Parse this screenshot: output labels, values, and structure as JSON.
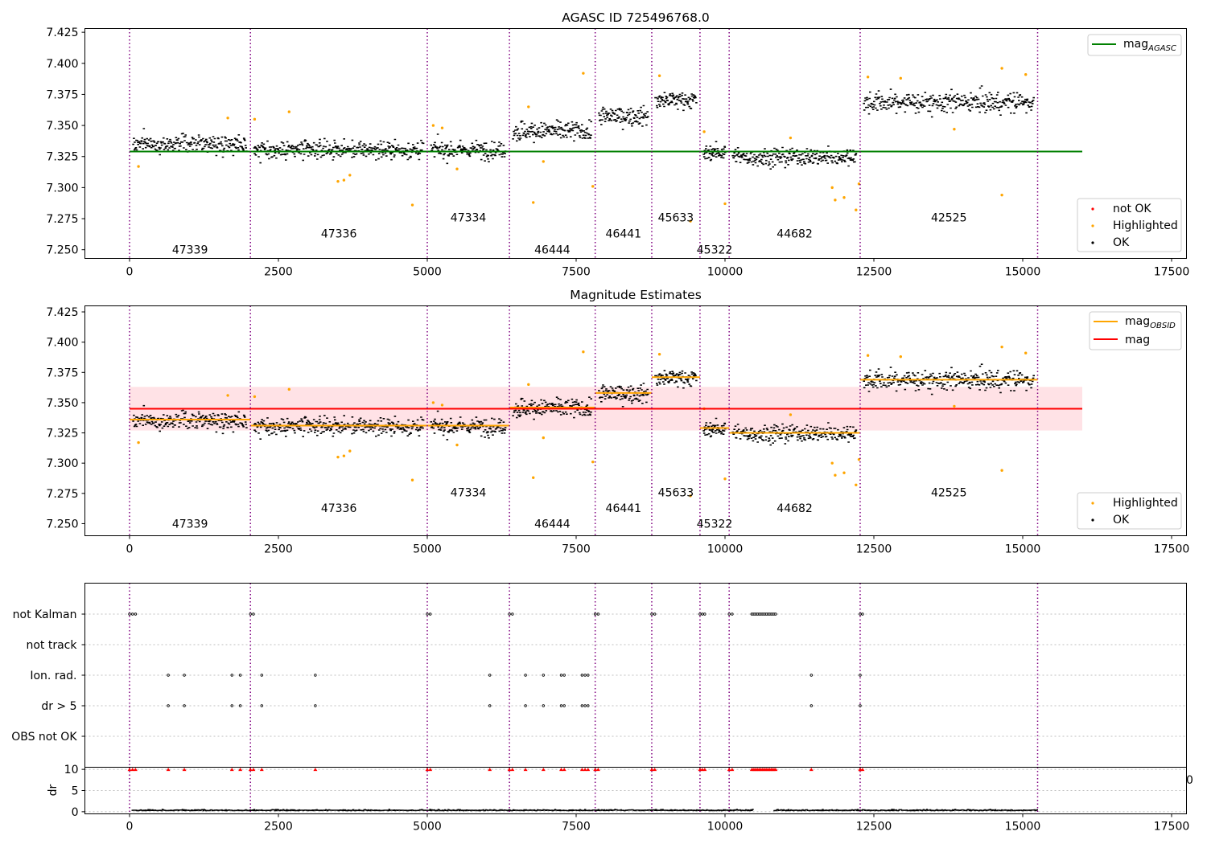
{
  "chart_data": [
    {
      "type": "scatter",
      "title": "AGASC ID 725496768.0",
      "xlim": [
        -750,
        17750
      ],
      "ylim": [
        7.243,
        7.428
      ],
      "xticks": [
        0,
        2500,
        5000,
        7500,
        10000,
        12500,
        15000,
        17500
      ],
      "yticks": [
        7.25,
        7.275,
        7.3,
        7.325,
        7.35,
        7.375,
        7.4,
        7.425
      ],
      "legend_placement": "top-right (line), bottom-right (points)",
      "line_legend": [
        {
          "label": "mag",
          "sub": "AGASC",
          "color": "#008000"
        }
      ],
      "point_legend": [
        {
          "label": "not OK",
          "color": "#ff0000"
        },
        {
          "label": "Highlighted",
          "color": "#ffa500"
        },
        {
          "label": "OK",
          "color": "#000000"
        }
      ],
      "mag_agasc": {
        "value": 7.329,
        "x": [
          0,
          16000
        ]
      },
      "observation_boundaries": [
        0,
        2030,
        5000,
        6380,
        7820,
        8770,
        9580,
        10070,
        12270,
        15250
      ],
      "observations": [
        {
          "obsid": "47339",
          "x": [
            0,
            2030
          ],
          "mean": 7.336,
          "scatter": 0.006,
          "label_y": 7.25
        },
        {
          "obsid": "47336",
          "x": [
            2030,
            5000
          ],
          "mean": 7.331,
          "scatter": 0.006,
          "label_y": 7.263
        },
        {
          "obsid": "47334",
          "x": [
            5000,
            6380
          ],
          "mean": 7.331,
          "scatter": 0.006,
          "label_y": 7.276
        },
        {
          "obsid": "46444",
          "x": [
            6380,
            7820
          ],
          "mean": 7.346,
          "scatter": 0.007,
          "label_y": 7.25
        },
        {
          "obsid": "46441",
          "x": [
            7820,
            8770
          ],
          "mean": 7.358,
          "scatter": 0.006,
          "label_y": 7.263
        },
        {
          "obsid": "45633",
          "x": [
            8770,
            9580
          ],
          "mean": 7.371,
          "scatter": 0.006,
          "label_y": 7.276
        },
        {
          "obsid": "45322",
          "x": [
            9580,
            10070
          ],
          "mean": 7.329,
          "scatter": 0.005,
          "label_y": 7.25
        },
        {
          "obsid": "44682",
          "x": [
            10070,
            12270
          ],
          "mean": 7.325,
          "scatter": 0.006,
          "label_y": 7.263
        },
        {
          "obsid": "42525",
          "x": [
            12270,
            15250
          ],
          "mean": 7.369,
          "scatter": 0.007,
          "label_y": 7.276
        }
      ],
      "highlighted_points": [
        {
          "x": 150,
          "y": 7.317
        },
        {
          "x": 1650,
          "y": 7.356
        },
        {
          "x": 2100,
          "y": 7.355
        },
        {
          "x": 2680,
          "y": 7.361
        },
        {
          "x": 3500,
          "y": 7.305
        },
        {
          "x": 3600,
          "y": 7.306
        },
        {
          "x": 3700,
          "y": 7.31
        },
        {
          "x": 4750,
          "y": 7.286
        },
        {
          "x": 5100,
          "y": 7.35
        },
        {
          "x": 5250,
          "y": 7.348
        },
        {
          "x": 5500,
          "y": 7.315
        },
        {
          "x": 6700,
          "y": 7.365
        },
        {
          "x": 6780,
          "y": 7.288
        },
        {
          "x": 6950,
          "y": 7.321
        },
        {
          "x": 7620,
          "y": 7.392
        },
        {
          "x": 7780,
          "y": 7.301
        },
        {
          "x": 8900,
          "y": 7.39
        },
        {
          "x": 9420,
          "y": 7.273
        },
        {
          "x": 9650,
          "y": 7.345
        },
        {
          "x": 10000,
          "y": 7.287
        },
        {
          "x": 11100,
          "y": 7.34
        },
        {
          "x": 11800,
          "y": 7.3
        },
        {
          "x": 11850,
          "y": 7.29
        },
        {
          "x": 12000,
          "y": 7.292
        },
        {
          "x": 12200,
          "y": 7.282
        },
        {
          "x": 12250,
          "y": 7.303
        },
        {
          "x": 12400,
          "y": 7.389
        },
        {
          "x": 12950,
          "y": 7.388
        },
        {
          "x": 13850,
          "y": 7.347
        },
        {
          "x": 14650,
          "y": 7.294
        },
        {
          "x": 14650,
          "y": 7.396
        },
        {
          "x": 15050,
          "y": 7.391
        }
      ]
    },
    {
      "type": "scatter",
      "title": "Magnitude Estimates",
      "xlim": [
        -750,
        17750
      ],
      "ylim": [
        7.24,
        7.43
      ],
      "xticks": [
        0,
        2500,
        5000,
        7500,
        10000,
        12500,
        15000,
        17500
      ],
      "yticks": [
        7.25,
        7.275,
        7.3,
        7.325,
        7.35,
        7.375,
        7.4,
        7.425
      ],
      "legend_placement": "top-right (lines), bottom-right (points)",
      "line_legend": [
        {
          "label": "mag",
          "sub": "OBSID",
          "color": "#ffa500"
        },
        {
          "label": "mag",
          "sub": "",
          "color": "#ff0000"
        }
      ],
      "point_legend": [
        {
          "label": "Highlighted",
          "color": "#ffa500"
        },
        {
          "label": "OK",
          "color": "#000000"
        }
      ],
      "mag": {
        "value": 7.345,
        "band": [
          7.327,
          7.363
        ],
        "x": [
          0,
          16000
        ]
      }
    },
    {
      "type": "scatter",
      "title": "",
      "categories": [
        "not Kalman",
        "not track",
        "Ion. rad.",
        "dr > 5",
        "OBS not OK"
      ],
      "xlim": [
        -750,
        17750
      ],
      "flags": {
        "not Kalman": [
          0,
          50,
          100,
          2030,
          2080,
          5000,
          5050,
          6380,
          6430,
          7820,
          7870,
          8770,
          8820,
          9580,
          9620,
          9660,
          10070,
          10120,
          12270,
          12310
        ],
        "not Kalman range": [
          10450,
          10850
        ],
        "Ion. rad.": [
          650,
          920,
          1720,
          1860,
          2220,
          3120,
          6050,
          6650,
          6950,
          7250,
          7300,
          7600,
          7650,
          7700,
          11450,
          12270
        ],
        "dr > 5": [
          650,
          920,
          1720,
          1860,
          2220,
          3120,
          6050,
          6650,
          6950,
          7250,
          7300,
          7600,
          7650,
          7700,
          11450,
          12270
        ]
      }
    },
    {
      "type": "scatter",
      "ylabel": "dr",
      "xlim": [
        -750,
        17750
      ],
      "ylim": [
        -0.5,
        10.5
      ],
      "xticks": [
        0,
        2500,
        5000,
        7500,
        10000,
        12500,
        15000,
        17500
      ],
      "yticks": [
        0,
        5,
        10
      ],
      "stray_tick_label": "0",
      "dr_baseline": 0.4,
      "dr_gaps": [
        [
          10470,
          10830
        ]
      ],
      "dr_red_markers_y": 10
    }
  ]
}
